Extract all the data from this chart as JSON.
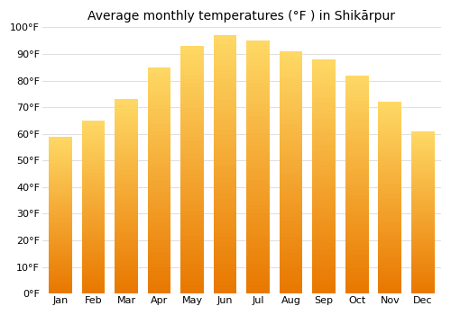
{
  "title": "Average monthly temperatures (°F ) in Shikārpur",
  "months": [
    "Jan",
    "Feb",
    "Mar",
    "Apr",
    "May",
    "Jun",
    "Jul",
    "Aug",
    "Sep",
    "Oct",
    "Nov",
    "Dec"
  ],
  "values": [
    59,
    65,
    73,
    85,
    93,
    97,
    95,
    91,
    88,
    82,
    72,
    61
  ],
  "bar_color_bottom": "#E87800",
  "bar_color_top": "#FFD966",
  "background_color": "#ffffff",
  "plot_bg_color": "#ffffff",
  "ylim": [
    0,
    100
  ],
  "yticks": [
    0,
    10,
    20,
    30,
    40,
    50,
    60,
    70,
    80,
    90,
    100
  ],
  "ytick_labels": [
    "0°F",
    "10°F",
    "20°F",
    "30°F",
    "40°F",
    "50°F",
    "60°F",
    "70°F",
    "80°F",
    "90°F",
    "100°F"
  ],
  "grid_color": "#e0e0e0",
  "tick_fontsize": 8,
  "title_fontsize": 10,
  "bar_width": 0.7
}
